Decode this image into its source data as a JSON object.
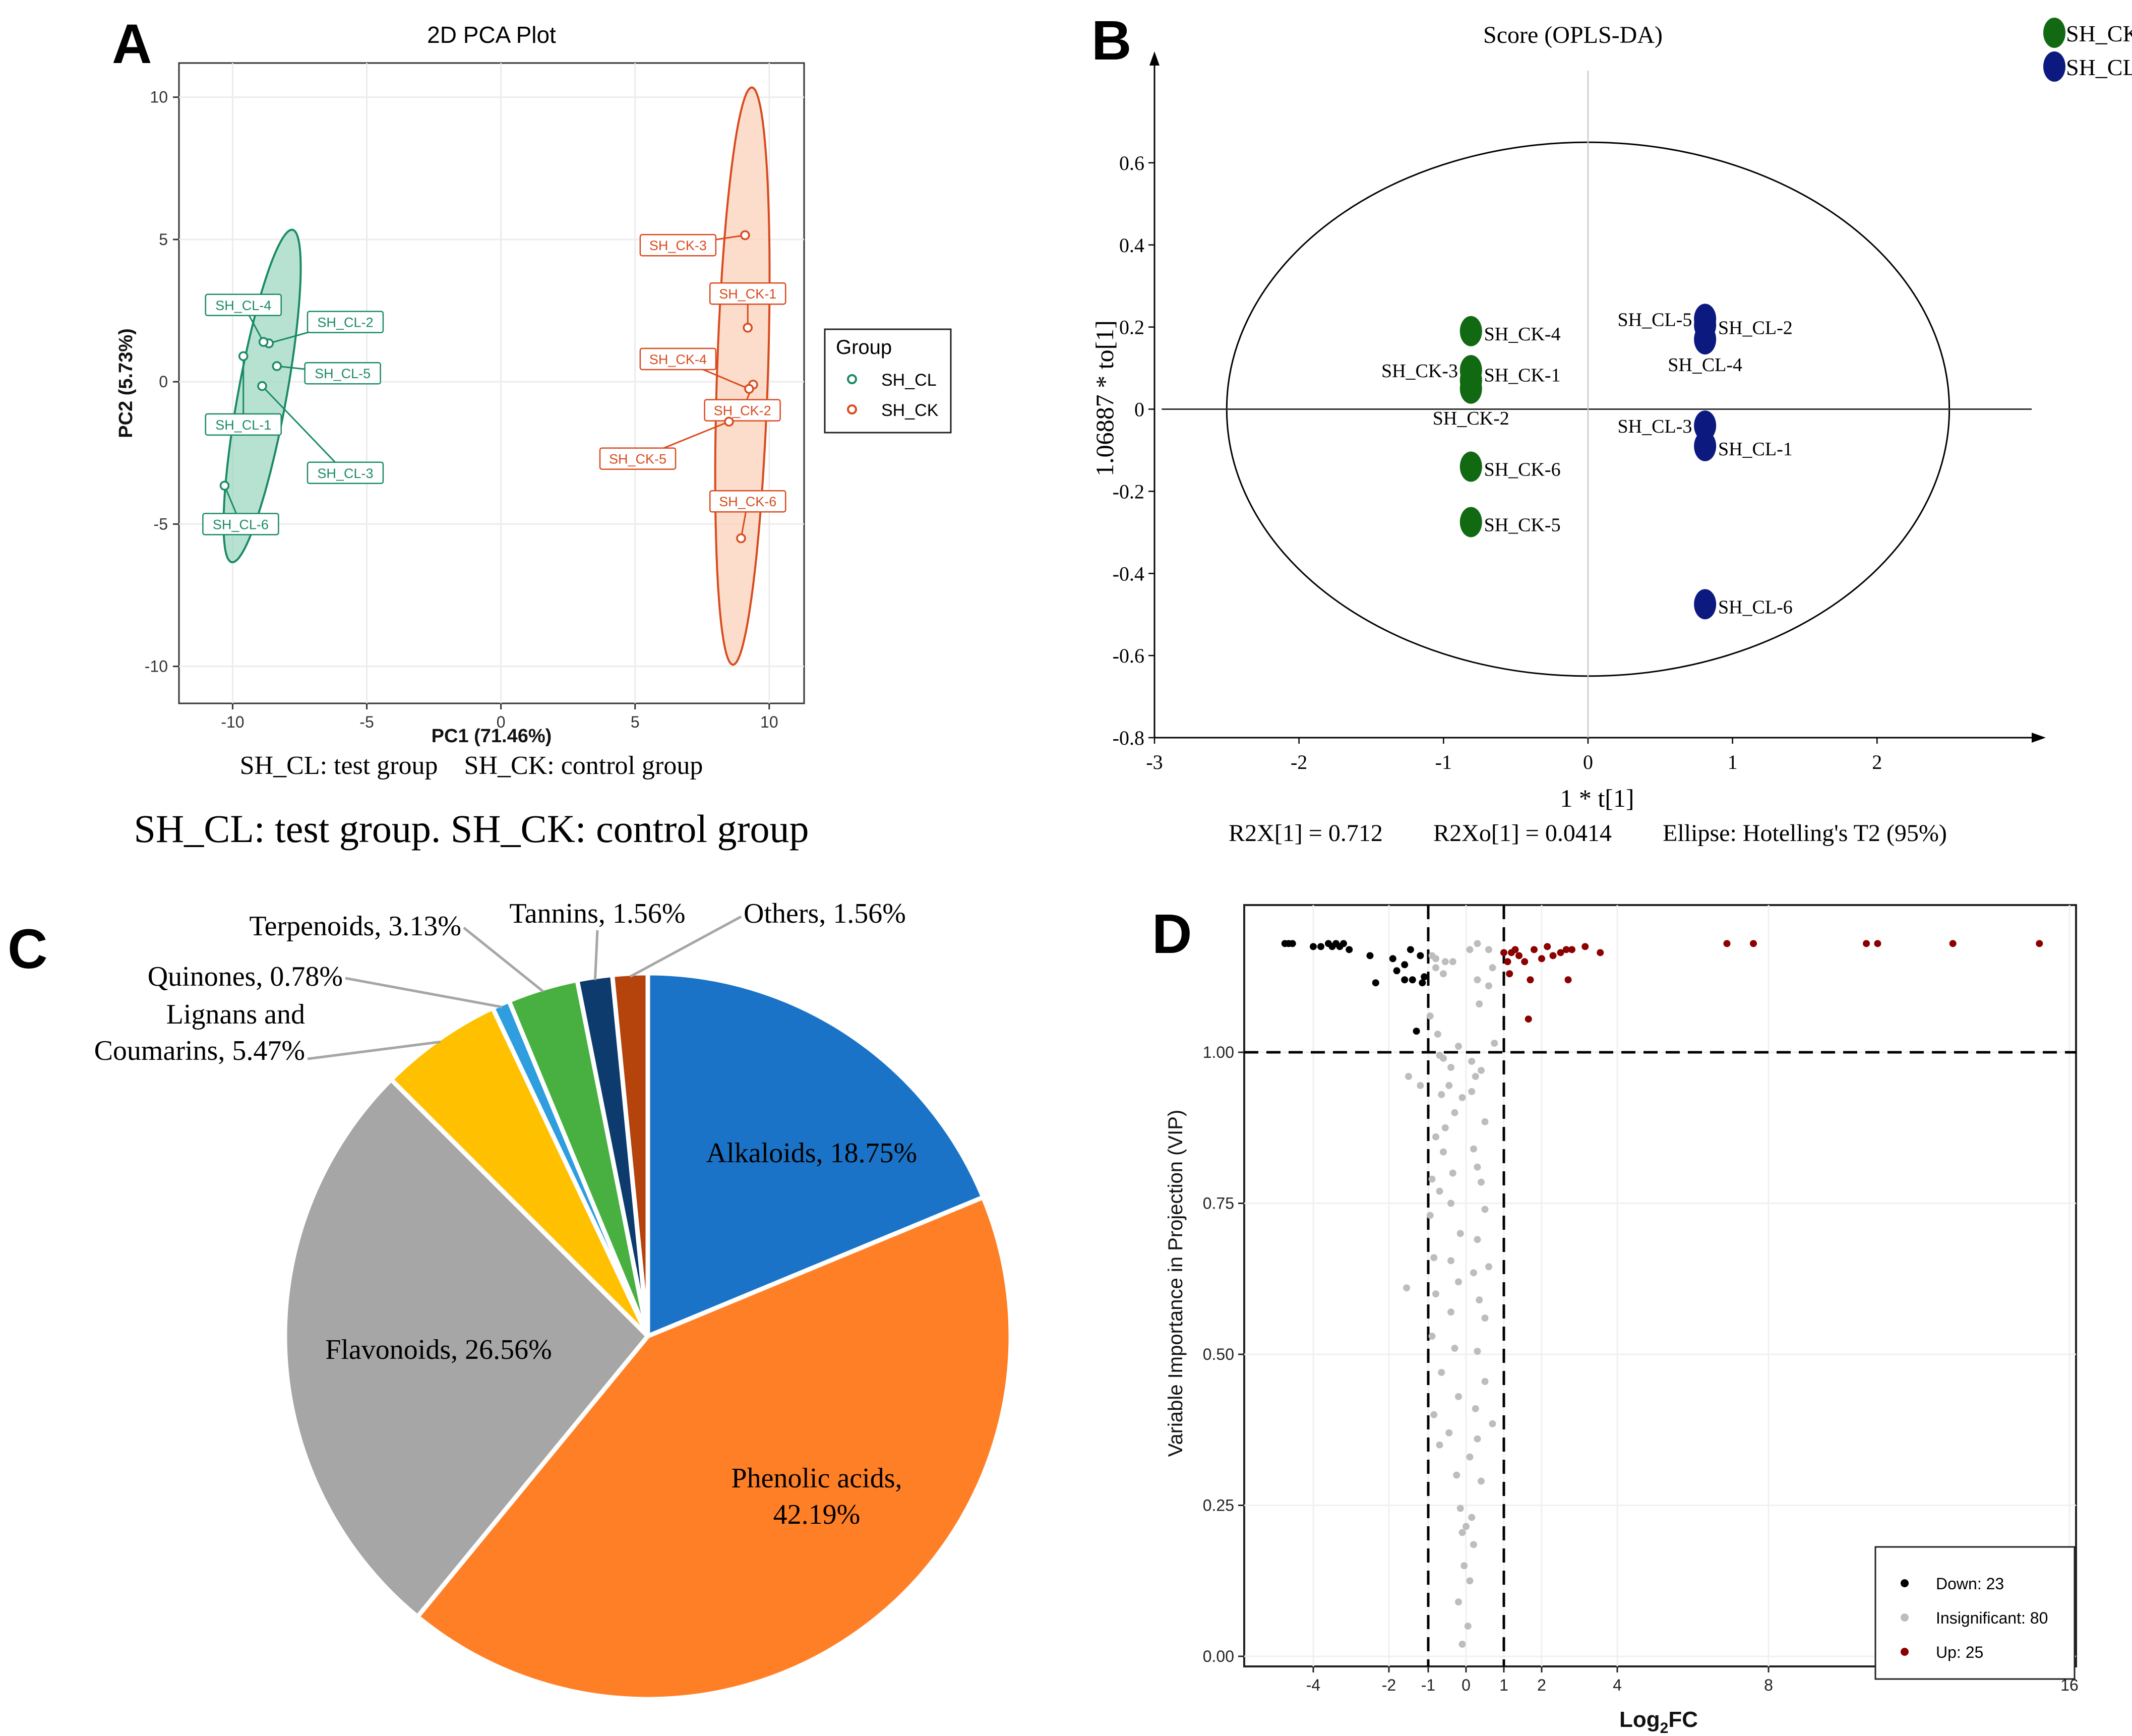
{
  "panel_labels": {
    "a": "A",
    "b": "B",
    "c": "C",
    "d": "D"
  },
  "chart_data": [
    {
      "id": "A",
      "type": "scatter",
      "title": "2D PCA Plot",
      "xlabel": "PC1 (71.46%)",
      "ylabel": "PC2 (5.73%)",
      "xlim": [
        -12,
        11.3
      ],
      "ylim": [
        -11.3,
        11.2
      ],
      "xticks": [
        -10,
        -5,
        0,
        5,
        10
      ],
      "yticks": [
        -10,
        -5,
        0,
        5,
        10
      ],
      "legend": {
        "title": "Group",
        "entries": [
          "SH_CL",
          "SH_CK"
        ],
        "colors": [
          "#1a8a66",
          "#d94a1e"
        ],
        "position": "right"
      },
      "subtitle_line": "SH_CL: test group    SH_CK: control group",
      "caption": "SH_CL: test group. SH_CK: control group",
      "series": [
        {
          "name": "SH_CL",
          "color": "#1a8a66",
          "fill": "#9fd8c2",
          "ellipse": {
            "cx": -8.9,
            "cy": -0.5,
            "rx": 5.95,
            "ry": 0.9,
            "angle_deg": 79
          },
          "points": [
            {
              "label": "SH_CL-1",
              "x": -9.6,
              "y": 0.9,
              "label_x": -9.6,
              "label_y": -1.5
            },
            {
              "label": "SH_CL-2",
              "x": -8.65,
              "y": 1.35,
              "label_x": -5.8,
              "label_y": 2.1
            },
            {
              "label": "SH_CL-3",
              "x": -8.9,
              "y": -0.15,
              "label_x": -5.8,
              "label_y": -3.2
            },
            {
              "label": "SH_CL-4",
              "x": -8.85,
              "y": 1.4,
              "label_x": -9.6,
              "label_y": 2.7
            },
            {
              "label": "SH_CL-5",
              "x": -8.35,
              "y": 0.55,
              "label_x": -5.9,
              "label_y": 0.3
            },
            {
              "label": "SH_CL-6",
              "x": -10.3,
              "y": -3.65,
              "label_x": -9.7,
              "label_y": -5.0
            }
          ]
        },
        {
          "name": "SH_CK",
          "color": "#d94a1e",
          "fill": "#fbd0b8",
          "ellipse": {
            "cx": 9.0,
            "cy": 0.2,
            "rx": 10.15,
            "ry": 0.95,
            "angle_deg": 88
          },
          "points": [
            {
              "label": "SH_CK-1",
              "x": 9.2,
              "y": 1.9,
              "label_x": 9.2,
              "label_y": 3.1
            },
            {
              "label": "SH_CK-2",
              "x": 9.4,
              "y": -0.1,
              "label_x": 9.0,
              "label_y": -1.0
            },
            {
              "label": "SH_CK-3",
              "x": 9.1,
              "y": 5.15,
              "label_x": 6.6,
              "label_y": 4.8
            },
            {
              "label": "SH_CK-4",
              "x": 9.25,
              "y": -0.25,
              "label_x": 6.6,
              "label_y": 0.8
            },
            {
              "label": "SH_CK-5",
              "x": 8.5,
              "y": -1.4,
              "label_x": 5.1,
              "label_y": -2.7
            },
            {
              "label": "SH_CK-6",
              "x": 8.95,
              "y": -5.5,
              "label_x": 9.2,
              "label_y": -4.2
            }
          ]
        }
      ]
    },
    {
      "id": "B",
      "type": "scatter",
      "title": "Score (OPLS-DA)",
      "xlabel": "1 * t[1]",
      "ylabel": "1.06887 * to[1]",
      "xlim": [
        -3,
        3.0
      ],
      "ylim": [
        -0.8,
        0.8
      ],
      "xticks": [
        -3,
        -2,
        -1,
        0,
        1,
        2
      ],
      "yticks": [
        -0.8,
        -0.6,
        -0.4,
        -0.2,
        0,
        0.2,
        0.4,
        0.6
      ],
      "xtick_labels": [
        "-3",
        "-2",
        "-1",
        "0",
        "1",
        "2"
      ],
      "ytick_labels": [
        "-0.8",
        "-0.6",
        "-0.4",
        "-0.2",
        "0",
        "0.2",
        "0.4",
        "0.6"
      ],
      "ellipse": {
        "cx": 0,
        "cy": 0,
        "rx": 2.5,
        "ry": 0.65
      },
      "legend": {
        "entries": [
          "SH_CK",
          "SH_CL"
        ],
        "colors": [
          "#116a11",
          "#0c1a80"
        ],
        "position": "top-right"
      },
      "stats": {
        "r2x": "R2X[1] = 0.712",
        "r2xo": "R2Xo[1] = 0.0414",
        "ellipse_note": "Ellipse: Hotelling's T2 (95%)"
      },
      "series": [
        {
          "name": "SH_CK",
          "color": "#116a11",
          "points": [
            {
              "label": "SH_CK-1",
              "x": -0.81,
              "y": 0.07,
              "label_x": -0.72,
              "label_y": 0.085,
              "anchor": "start"
            },
            {
              "label": "SH_CK-2",
              "x": -0.81,
              "y": 0.05,
              "label_x": -0.81,
              "label_y": -0.02,
              "anchor": "middle"
            },
            {
              "label": "SH_CK-3",
              "x": -0.81,
              "y": 0.095,
              "label_x": -0.9,
              "label_y": 0.095,
              "anchor": "end"
            },
            {
              "label": "SH_CK-4",
              "x": -0.81,
              "y": 0.19,
              "label_x": -0.72,
              "label_y": 0.185,
              "anchor": "start"
            },
            {
              "label": "SH_CK-5",
              "x": -0.81,
              "y": -0.275,
              "label_x": -0.72,
              "label_y": -0.28,
              "anchor": "start"
            },
            {
              "label": "SH_CK-6",
              "x": -0.81,
              "y": -0.14,
              "label_x": -0.72,
              "label_y": -0.145,
              "anchor": "start"
            }
          ]
        },
        {
          "name": "SH_CL",
          "color": "#0c1a80",
          "points": [
            {
              "label": "SH_CL-1",
              "x": 0.81,
              "y": -0.09,
              "label_x": 0.9,
              "label_y": -0.095,
              "anchor": "start"
            },
            {
              "label": "SH_CL-2",
              "x": 0.81,
              "y": 0.205,
              "label_x": 0.9,
              "label_y": 0.2,
              "anchor": "start"
            },
            {
              "label": "SH_CL-3",
              "x": 0.81,
              "y": -0.04,
              "label_x": 0.72,
              "label_y": -0.04,
              "anchor": "end"
            },
            {
              "label": "SH_CL-4",
              "x": 0.81,
              "y": 0.17,
              "label_x": 0.81,
              "label_y": 0.11,
              "anchor": "middle"
            },
            {
              "label": "SH_CL-5",
              "x": 0.81,
              "y": 0.22,
              "label_x": 0.72,
              "label_y": 0.22,
              "anchor": "end"
            },
            {
              "label": "SH_CL-6",
              "x": 0.81,
              "y": -0.475,
              "label_x": 0.9,
              "label_y": -0.48,
              "anchor": "start"
            }
          ]
        }
      ]
    },
    {
      "id": "C",
      "type": "pie",
      "slices": [
        {
          "name": "Alkaloids",
          "percent": 18.75,
          "color": "#1a73c6",
          "label_lines": [
            "Alkaloids, 18.75%"
          ],
          "placement": "inside"
        },
        {
          "name": "Phenolic acids",
          "percent": 42.19,
          "color": "#ff7f27",
          "label_lines": [
            "Phenolic acids,",
            "42.19%"
          ],
          "placement": "inside"
        },
        {
          "name": "Flavonoids",
          "percent": 26.56,
          "color": "#a6a6a6",
          "label_lines": [
            "Flavonoids, 26.56%"
          ],
          "placement": "inside"
        },
        {
          "name": "Lignans and Coumarins",
          "percent": 5.47,
          "color": "#ffc000",
          "label_lines": [
            "Lignans and",
            "Coumarins, 5.47%"
          ],
          "placement": "outside"
        },
        {
          "name": "Quinones",
          "percent": 0.78,
          "color": "#2e9ede",
          "label_lines": [
            "Quinones, 0.78%"
          ],
          "placement": "outside"
        },
        {
          "name": "Terpenoids",
          "percent": 3.13,
          "color": "#48b040",
          "label_lines": [
            "Terpenoids, 3.13%"
          ],
          "placement": "outside"
        },
        {
          "name": "Tannins",
          "percent": 1.56,
          "color": "#0e3b6e",
          "label_lines": [
            "Tannins, 1.56%"
          ],
          "placement": "outside"
        },
        {
          "name": "Others",
          "percent": 1.56,
          "color": "#b5430c",
          "label_lines": [
            "Others, 1.56%"
          ],
          "placement": "outside"
        }
      ]
    },
    {
      "id": "D",
      "type": "scatter",
      "title": "",
      "xlabel": "Log2FC",
      "xlabel_main": "Log",
      "xlabel_sub": "2",
      "xlabel_tail": "FC",
      "ylabel": "Variable Importance in Projection (VIP)",
      "xlim": [
        -5.5,
        16
      ],
      "ylim": [
        -0.04,
        1.2
      ],
      "xticks": [
        -4,
        -2,
        -1,
        0,
        1,
        2,
        4,
        8,
        16
      ],
      "xtick_labels": [
        "-4",
        "-2",
        "-1",
        "0",
        "1",
        "2",
        "4",
        "8",
        "16"
      ],
      "yticks": [
        0,
        0.25,
        0.5,
        0.75,
        1.0
      ],
      "ytick_labels": [
        "0.00",
        "0.25",
        "0.50",
        "0.75",
        "1.00"
      ],
      "thresholds": {
        "vip": 1.0,
        "log2fc": [
          -1,
          1
        ]
      },
      "legend": {
        "entries": [
          "Down: 23",
          "Insignificant: 80",
          "Up: 25"
        ],
        "colors": [
          "#000000",
          "#bdbdbd",
          "#8b0000"
        ],
        "position": "bottom-right"
      },
      "series": [
        {
          "name": "Down",
          "color": "#000000",
          "count": 23,
          "points": [
            [
              -4.75,
              1.18
            ],
            [
              -4.65,
              1.18
            ],
            [
              -4.55,
              1.18
            ],
            [
              -4.0,
              1.175
            ],
            [
              -3.8,
              1.175
            ],
            [
              -3.6,
              1.18
            ],
            [
              -3.5,
              1.175
            ],
            [
              -3.4,
              1.18
            ],
            [
              -3.3,
              1.175
            ],
            [
              -3.2,
              1.18
            ],
            [
              -3.05,
              1.17
            ],
            [
              -2.5,
              1.16
            ],
            [
              -1.9,
              1.155
            ],
            [
              -1.45,
              1.17
            ],
            [
              -1.2,
              1.16
            ],
            [
              -1.1,
              1.125
            ],
            [
              -1.6,
              1.145
            ],
            [
              -1.8,
              1.135
            ],
            [
              -2.35,
              1.115
            ],
            [
              -1.6,
              1.12
            ],
            [
              -1.4,
              1.12
            ],
            [
              -1.15,
              1.115
            ],
            [
              -1.3,
              1.035
            ]
          ]
        },
        {
          "name": "Insignificant",
          "color": "#bdbdbd",
          "count": 80,
          "points": [
            [
              -0.9,
              1.16
            ],
            [
              -0.8,
              1.155
            ],
            [
              -0.55,
              1.15
            ],
            [
              -0.35,
              1.15
            ],
            [
              0.1,
              1.17
            ],
            [
              0.3,
              1.18
            ],
            [
              0.6,
              1.17
            ],
            [
              0.7,
              1.14
            ],
            [
              0.6,
              1.11
            ],
            [
              0.3,
              1.12
            ],
            [
              -0.6,
              1.13
            ],
            [
              -0.8,
              1.14
            ],
            [
              0.35,
              1.08
            ],
            [
              -0.95,
              1.06
            ],
            [
              -0.75,
              1.03
            ],
            [
              -0.2,
              1.01
            ],
            [
              0.75,
              1.015
            ],
            [
              -0.7,
              0.995
            ],
            [
              -0.6,
              0.99
            ],
            [
              0.15,
              0.985
            ],
            [
              0.4,
              0.97
            ],
            [
              -0.4,
              0.975
            ],
            [
              0.25,
              0.96
            ],
            [
              -0.45,
              0.945
            ],
            [
              -1.5,
              0.96
            ],
            [
              -1.2,
              0.945
            ],
            [
              -0.65,
              0.93
            ],
            [
              -0.1,
              0.925
            ],
            [
              0.15,
              0.935
            ],
            [
              -0.3,
              0.9
            ],
            [
              0.5,
              0.885
            ],
            [
              -0.55,
              0.875
            ],
            [
              -0.8,
              0.86
            ],
            [
              0.2,
              0.84
            ],
            [
              -0.6,
              0.835
            ],
            [
              0.3,
              0.81
            ],
            [
              -0.35,
              0.8
            ],
            [
              -0.9,
              0.79
            ],
            [
              -0.7,
              0.77
            ],
            [
              0.4,
              0.785
            ],
            [
              -0.4,
              0.75
            ],
            [
              -0.95,
              0.73
            ],
            [
              0.5,
              0.74
            ],
            [
              -0.15,
              0.7
            ],
            [
              0.3,
              0.69
            ],
            [
              -0.85,
              0.66
            ],
            [
              -0.4,
              0.655
            ],
            [
              0.6,
              0.645
            ],
            [
              -0.2,
              0.62
            ],
            [
              0.2,
              0.635
            ],
            [
              -1.55,
              0.61
            ],
            [
              -0.8,
              0.6
            ],
            [
              0.35,
              0.59
            ],
            [
              -0.4,
              0.57
            ],
            [
              0.5,
              0.56
            ],
            [
              -0.9,
              0.53
            ],
            [
              -0.3,
              0.51
            ],
            [
              0.3,
              0.505
            ],
            [
              -0.65,
              0.47
            ],
            [
              0.5,
              0.455
            ],
            [
              -0.2,
              0.43
            ],
            [
              0.25,
              0.41
            ],
            [
              -0.85,
              0.4
            ],
            [
              0.7,
              0.385
            ],
            [
              -0.45,
              0.37
            ],
            [
              0.3,
              0.36
            ],
            [
              -0.7,
              0.35
            ],
            [
              0.1,
              0.33
            ],
            [
              -0.25,
              0.3
            ],
            [
              0.4,
              0.29
            ],
            [
              -0.15,
              0.245
            ],
            [
              0.15,
              0.23
            ],
            [
              0.0,
              0.215
            ],
            [
              -0.1,
              0.205
            ],
            [
              0.2,
              0.185
            ],
            [
              -0.05,
              0.15
            ],
            [
              0.1,
              0.125
            ],
            [
              -0.2,
              0.09
            ],
            [
              0.05,
              0.05
            ],
            [
              -0.1,
              0.02
            ]
          ]
        },
        {
          "name": "Up",
          "color": "#8b0000",
          "count": 25,
          "points": [
            [
              1.0,
              1.165
            ],
            [
              1.1,
              1.15
            ],
            [
              1.2,
              1.165
            ],
            [
              1.3,
              1.17
            ],
            [
              1.4,
              1.16
            ],
            [
              1.55,
              1.15
            ],
            [
              1.8,
              1.17
            ],
            [
              2.0,
              1.155
            ],
            [
              2.15,
              1.175
            ],
            [
              2.3,
              1.16
            ],
            [
              2.5,
              1.165
            ],
            [
              2.65,
              1.17
            ],
            [
              2.8,
              1.17
            ],
            [
              3.15,
              1.175
            ],
            [
              3.55,
              1.165
            ],
            [
              6.9,
              1.18
            ],
            [
              7.6,
              1.18
            ],
            [
              10.6,
              1.18
            ],
            [
              10.9,
              1.18
            ],
            [
              12.9,
              1.18
            ],
            [
              15.2,
              1.18
            ],
            [
              1.15,
              1.13
            ],
            [
              1.7,
              1.12
            ],
            [
              2.7,
              1.12
            ],
            [
              1.65,
              1.055
            ]
          ]
        }
      ]
    }
  ]
}
